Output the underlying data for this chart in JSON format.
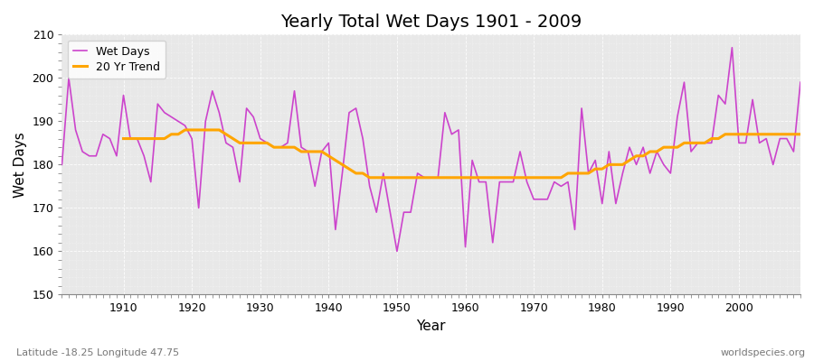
{
  "title": "Yearly Total Wet Days 1901 - 2009",
  "xlabel": "Year",
  "ylabel": "Wet Days",
  "bottom_left_label": "Latitude -18.25 Longitude 47.75",
  "bottom_right_label": "worldspecies.org",
  "ylim": [
    150,
    210
  ],
  "yticks": [
    150,
    160,
    170,
    180,
    190,
    200,
    210
  ],
  "xticks": [
    1910,
    1920,
    1930,
    1940,
    1950,
    1960,
    1970,
    1980,
    1990,
    2000
  ],
  "wet_days_color": "#cc44cc",
  "trend_color": "#ffa500",
  "background_color": "#e8e8e8",
  "grid_color": "#ffffff",
  "wet_days": [
    180,
    200,
    188,
    183,
    182,
    182,
    187,
    186,
    182,
    196,
    186,
    186,
    182,
    176,
    194,
    192,
    191,
    190,
    189,
    186,
    170,
    190,
    197,
    192,
    185,
    184,
    176,
    193,
    191,
    186,
    185,
    184,
    184,
    185,
    197,
    184,
    183,
    175,
    183,
    185,
    165,
    178,
    192,
    193,
    186,
    175,
    169,
    178,
    169,
    160,
    169,
    169,
    178,
    177,
    177,
    177,
    192,
    187,
    188,
    161,
    181,
    176,
    176,
    162,
    176,
    176,
    176,
    183,
    176,
    172,
    172,
    172,
    176,
    175,
    176,
    165,
    193,
    178,
    181,
    171,
    183,
    171,
    178,
    184,
    180,
    184,
    178,
    183,
    180,
    178,
    191,
    199,
    183,
    185,
    185,
    185,
    196,
    194,
    207,
    185,
    185,
    195,
    185,
    186,
    180,
    186,
    186,
    183,
    199
  ],
  "trend": [
    null,
    null,
    null,
    null,
    null,
    null,
    null,
    null,
    null,
    186,
    186,
    186,
    186,
    186,
    186,
    186,
    187,
    187,
    188,
    188,
    188,
    188,
    188,
    188,
    187,
    186,
    185,
    185,
    185,
    185,
    185,
    184,
    184,
    184,
    184,
    183,
    183,
    183,
    183,
    182,
    181,
    180,
    179,
    178,
    178,
    177,
    177,
    177,
    177,
    177,
    177,
    177,
    177,
    177,
    177,
    177,
    177,
    177,
    177,
    177,
    177,
    177,
    177,
    177,
    177,
    177,
    177,
    177,
    177,
    177,
    177,
    177,
    177,
    177,
    178,
    178,
    178,
    178,
    179,
    179,
    180,
    180,
    180,
    181,
    182,
    182,
    183,
    183,
    184,
    184,
    184,
    185,
    185,
    185,
    185,
    186,
    186,
    187,
    187,
    187,
    187,
    187,
    187,
    187,
    187,
    187,
    187,
    187,
    187
  ]
}
